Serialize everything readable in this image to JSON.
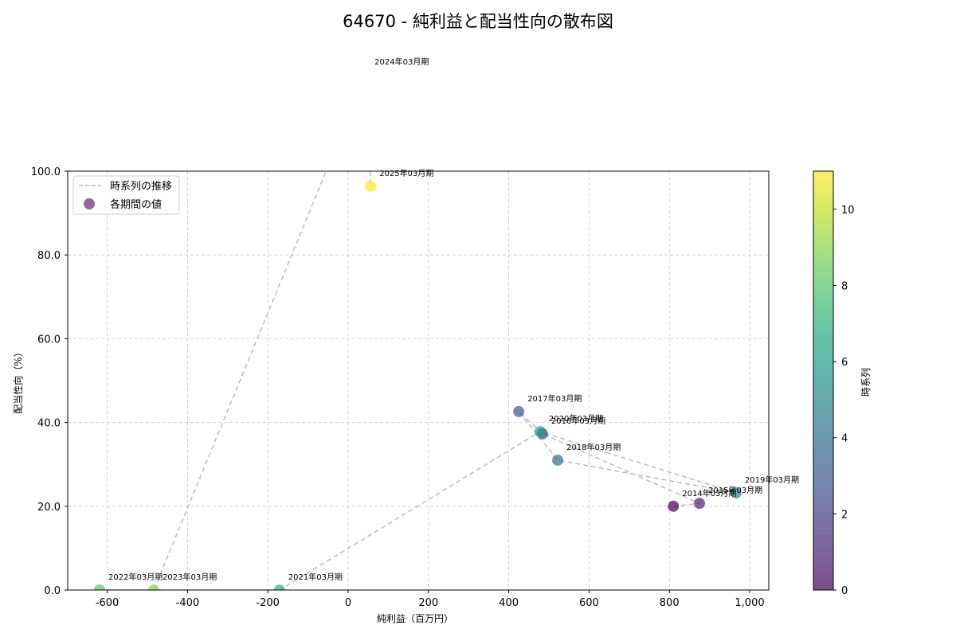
{
  "chart_data": {
    "type": "scatter",
    "title": "64670 - 純利益と配当性向の散布図",
    "xlabel": "純利益（百万円）",
    "ylabel": "配当性向（%）",
    "xlim": [
      -700,
      1050
    ],
    "ylim": [
      0,
      100
    ],
    "x_ticks": [
      -600,
      -400,
      -200,
      0,
      200,
      400,
      600,
      800,
      1000
    ],
    "x_tick_labels": [
      "-600",
      "-400",
      "-200",
      "0",
      "200",
      "400",
      "600",
      "800",
      "1,000"
    ],
    "y_ticks": [
      0,
      20,
      40,
      60,
      80,
      100
    ],
    "y_tick_labels": [
      "0.0",
      "20.0",
      "40.0",
      "60.0",
      "80.0",
      "100.0"
    ],
    "grid": true,
    "legend": {
      "position": "upper left",
      "entries": [
        {
          "label": "時系列の推移",
          "style": "dashed-line",
          "color": "#bbbbbb"
        },
        {
          "label": "各期間の値",
          "style": "marker",
          "color": "#7b4e94"
        }
      ]
    },
    "colorbar": {
      "label": "時系列",
      "colormap": "viridis",
      "range": [
        0,
        11
      ],
      "ticks": [
        0,
        2,
        4,
        6,
        8,
        10
      ]
    },
    "points": [
      {
        "label": "2014年03月期",
        "x": 810,
        "y": 20.0,
        "t": 0
      },
      {
        "label": "2015年03月期",
        "x": 875,
        "y": 20.7,
        "t": 1
      },
      {
        "label": "2016年03月期",
        "x": 484,
        "y": 37.3,
        "t": 2
      },
      {
        "label": "2017年03月期",
        "x": 425,
        "y": 42.6,
        "t": 3
      },
      {
        "label": "2018年03月期",
        "x": 522,
        "y": 31.0,
        "t": 4
      },
      {
        "label": "2019年03月期",
        "x": 966,
        "y": 23.2,
        "t": 5
      },
      {
        "label": "2020年03月期",
        "x": 478,
        "y": 37.8,
        "t": 6
      },
      {
        "label": "2021年03月期",
        "x": -171,
        "y": 0.0,
        "t": 7
      },
      {
        "label": "2022年03月期",
        "x": -619,
        "y": 0.0,
        "t": 8
      },
      {
        "label": "2023年03月期",
        "x": -484,
        "y": 0.0,
        "t": 9
      },
      {
        "label": "2024年03月期",
        "x": 44,
        "y": 123.0,
        "t": 10
      },
      {
        "label": "2025年03月期",
        "x": 56,
        "y": 96.4,
        "t": 11
      }
    ]
  }
}
